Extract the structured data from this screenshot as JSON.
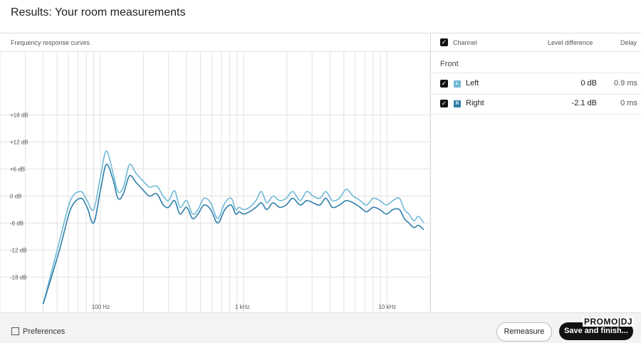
{
  "title": "Results: Your room measurements",
  "chart_panel": {
    "header": "Frequency response curves"
  },
  "chart_data": {
    "type": "line",
    "xscale": "log",
    "xlim": [
      20,
      20000
    ],
    "ylim": [
      -26,
      32
    ],
    "grid": true,
    "y_ticks": [
      {
        "value": 18,
        "label": "+18 dB"
      },
      {
        "value": 12,
        "label": "+12 dB"
      },
      {
        "value": 6,
        "label": "+6 dB"
      },
      {
        "value": 0,
        "label": "0 dB"
      },
      {
        "value": -6,
        "label": "-6 dB"
      },
      {
        "value": -12,
        "label": "-12 dB"
      },
      {
        "value": -18,
        "label": "-18 dB"
      }
    ],
    "x_ticks": [
      {
        "value": 100,
        "label": "100 Hz"
      },
      {
        "value": 1000,
        "label": "1 kHz"
      },
      {
        "value": 10000,
        "label": "10 kHz"
      }
    ],
    "series": [
      {
        "name": "Left",
        "color": "#6fb9d6",
        "points": [
          [
            40,
            -24
          ],
          [
            52,
            -10
          ],
          [
            62,
            -1
          ],
          [
            73,
            1
          ],
          [
            81,
            -1
          ],
          [
            90,
            -3
          ],
          [
            100,
            4
          ],
          [
            110,
            10
          ],
          [
            122,
            5.5
          ],
          [
            133,
            1
          ],
          [
            145,
            2
          ],
          [
            160,
            7
          ],
          [
            178,
            5
          ],
          [
            197,
            3.5
          ],
          [
            220,
            2
          ],
          [
            248,
            2.2
          ],
          [
            275,
            0
          ],
          [
            300,
            -1
          ],
          [
            330,
            1.2
          ],
          [
            360,
            -2.5
          ],
          [
            400,
            -1
          ],
          [
            440,
            -4
          ],
          [
            480,
            -3
          ],
          [
            530,
            -0.5
          ],
          [
            590,
            -1.5
          ],
          [
            660,
            -5
          ],
          [
            740,
            -1.5
          ],
          [
            820,
            -0.5
          ],
          [
            880,
            -3
          ],
          [
            930,
            -2.5
          ],
          [
            1000,
            -3
          ],
          [
            1100,
            -2.5
          ],
          [
            1220,
            -1
          ],
          [
            1330,
            1
          ],
          [
            1450,
            -1.5
          ],
          [
            1600,
            0
          ],
          [
            1780,
            -1
          ],
          [
            1980,
            -0.5
          ],
          [
            2200,
            1
          ],
          [
            2480,
            -1
          ],
          [
            2750,
            1
          ],
          [
            3050,
            0
          ],
          [
            3400,
            -0.5
          ],
          [
            3750,
            1
          ],
          [
            4150,
            -1
          ],
          [
            4650,
            -0.5
          ],
          [
            5200,
            1.5
          ],
          [
            5800,
            0
          ],
          [
            6500,
            -1
          ],
          [
            7200,
            -2
          ],
          [
            8000,
            -0.5
          ],
          [
            8900,
            -1
          ],
          [
            9900,
            -2
          ],
          [
            11000,
            -1
          ],
          [
            12200,
            -0.5
          ],
          [
            13200,
            -3
          ],
          [
            14200,
            -4
          ],
          [
            15400,
            -5.5
          ],
          [
            16600,
            -4.5
          ],
          [
            18000,
            -6
          ]
        ]
      },
      {
        "name": "Right",
        "color": "#2f7eaa",
        "points": [
          [
            40,
            -24
          ],
          [
            52,
            -12
          ],
          [
            62,
            -3
          ],
          [
            73,
            -0.5
          ],
          [
            81,
            -2.5
          ],
          [
            90,
            -6
          ],
          [
            100,
            1
          ],
          [
            110,
            7
          ],
          [
            122,
            4
          ],
          [
            133,
            -0.5
          ],
          [
            145,
            0.5
          ],
          [
            160,
            4.5
          ],
          [
            178,
            3
          ],
          [
            197,
            1.5
          ],
          [
            220,
            0
          ],
          [
            248,
            0.5
          ],
          [
            275,
            -2
          ],
          [
            300,
            -2.5
          ],
          [
            330,
            -1
          ],
          [
            360,
            -4
          ],
          [
            400,
            -2.5
          ],
          [
            440,
            -5
          ],
          [
            480,
            -4
          ],
          [
            530,
            -2
          ],
          [
            590,
            -3
          ],
          [
            660,
            -6
          ],
          [
            740,
            -3
          ],
          [
            820,
            -2
          ],
          [
            880,
            -4
          ],
          [
            930,
            -3.5
          ],
          [
            1000,
            -4
          ],
          [
            1100,
            -3.5
          ],
          [
            1220,
            -2.5
          ],
          [
            1330,
            -1.5
          ],
          [
            1450,
            -3
          ],
          [
            1600,
            -1.5
          ],
          [
            1780,
            -2.5
          ],
          [
            1980,
            -2
          ],
          [
            2200,
            -0.5
          ],
          [
            2480,
            -2
          ],
          [
            2750,
            -1
          ],
          [
            3050,
            -1.5
          ],
          [
            3400,
            -2
          ],
          [
            3750,
            -0.5
          ],
          [
            4150,
            -2.5
          ],
          [
            4650,
            -2
          ],
          [
            5200,
            -1
          ],
          [
            5800,
            -1.5
          ],
          [
            6500,
            -2.5
          ],
          [
            7200,
            -3.5
          ],
          [
            8000,
            -2.5
          ],
          [
            8900,
            -3
          ],
          [
            9900,
            -4
          ],
          [
            11000,
            -3
          ],
          [
            12200,
            -3
          ],
          [
            13200,
            -5
          ],
          [
            14200,
            -6
          ],
          [
            15400,
            -7
          ],
          [
            16600,
            -6.5
          ],
          [
            18000,
            -7.5
          ]
        ]
      }
    ]
  },
  "side_panel": {
    "header": {
      "channel": "Channel",
      "level": "Level difference",
      "delay": "Delay"
    },
    "group_label": "Front",
    "channels": [
      {
        "badge": "L",
        "name": "Left",
        "level": "0 dB",
        "delay": "0.9 ms",
        "color": "#6fb9d6"
      },
      {
        "badge": "R",
        "name": "Right",
        "level": "-2.1 dB",
        "delay": "0 ms",
        "color": "#2f7eaa"
      }
    ]
  },
  "footer": {
    "preferences": "Preferences",
    "remeasure": "Remeasure",
    "save": "Save and finish..."
  },
  "watermark": "PROMO|DJ"
}
